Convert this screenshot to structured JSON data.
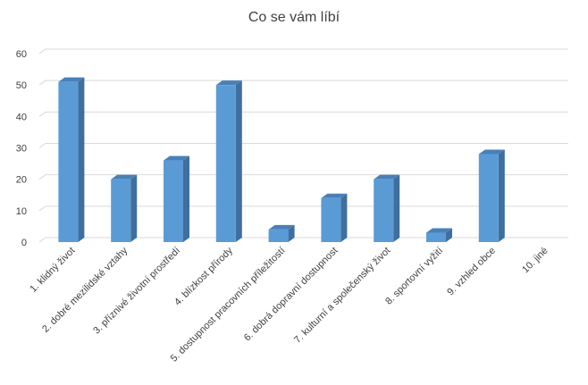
{
  "chart_data": {
    "type": "bar",
    "title": "Co se vám líbí",
    "categories": [
      "1. klidný život",
      "2. dobré mezilidské vztahy",
      "3. příznivé životní prostředí",
      "4. blízkost přírody",
      "5. dostupnost pracovních příležitostí",
      "6. dobrá dopravní dostupnost",
      "7. kulturní a společenský život",
      "8. sportovní vyžití",
      "9. vzhled obce",
      "10. jiné"
    ],
    "values": [
      51,
      20,
      26,
      50,
      4,
      14,
      20,
      3,
      28,
      0
    ],
    "ylim": [
      0,
      60
    ],
    "yticks": [
      0,
      10,
      20,
      30,
      40,
      50,
      60
    ],
    "grid": true,
    "legend": "none",
    "bar_style": "3d-column",
    "colors": {
      "bar_front": "#5B9BD5",
      "bar_side": "#3E6F9E",
      "bar_top": "#4A80B8",
      "grid": "#D9D9D9",
      "text": "#404040"
    }
  }
}
